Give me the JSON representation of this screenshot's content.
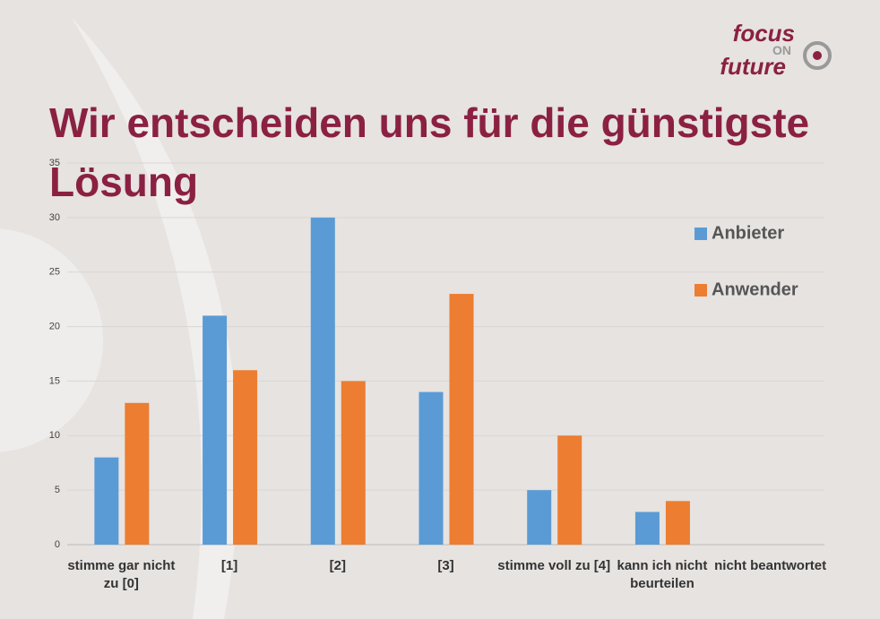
{
  "logo": {
    "line1": "focus",
    "line2": "ON",
    "line3": "future"
  },
  "chart_data": {
    "type": "bar",
    "title": "Wir entscheiden uns für die günstigste Lösung",
    "categories": [
      "stimme gar nicht zu [0]",
      "[1]",
      "[2]",
      "[3]",
      "stimme voll zu [4]",
      "kann ich nicht beurteilen",
      "nicht beantwortet"
    ],
    "series": [
      {
        "name": "Anbieter",
        "color": "#5b9bd5",
        "values": [
          8,
          21,
          30,
          14,
          5,
          3,
          0
        ]
      },
      {
        "name": "Anwender",
        "color": "#ed7d31",
        "values": [
          13,
          16,
          15,
          23,
          10,
          4,
          0
        ]
      }
    ],
    "ylim": [
      0,
      35
    ],
    "yticks": [
      0,
      5,
      10,
      15,
      20,
      25,
      30,
      35
    ],
    "grid": true,
    "legend": "right"
  }
}
